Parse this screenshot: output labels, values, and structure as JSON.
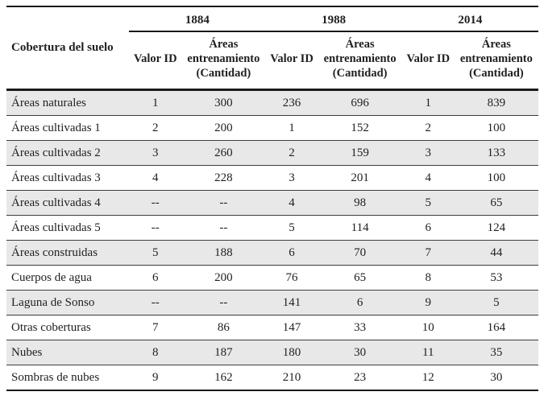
{
  "table": {
    "land_cover_header": "Cobertura del suelo",
    "sub_headers": {
      "valor_id": "Valor ID",
      "areas": "Áreas entrenamiento (Cantidad)"
    },
    "year_groups": [
      {
        "year": "1884"
      },
      {
        "year": "1988"
      },
      {
        "year": "2014"
      }
    ],
    "rows": [
      {
        "label": "Áreas naturales",
        "values": [
          "1",
          "300",
          "236",
          "696",
          "1",
          "839"
        ],
        "shaded": true
      },
      {
        "label": "Áreas cultivadas 1",
        "values": [
          "2",
          "200",
          "1",
          "152",
          "2",
          "100"
        ],
        "shaded": false
      },
      {
        "label": "Áreas cultivadas 2",
        "values": [
          "3",
          "260",
          "2",
          "159",
          "3",
          "133"
        ],
        "shaded": true
      },
      {
        "label": "Áreas cultivadas 3",
        "values": [
          "4",
          "228",
          "3",
          "201",
          "4",
          "100"
        ],
        "shaded": false
      },
      {
        "label": "Áreas cultivadas 4",
        "values": [
          "--",
          "--",
          "4",
          "98",
          "5",
          "65"
        ],
        "shaded": true
      },
      {
        "label": "Áreas cultivadas 5",
        "values": [
          "--",
          "--",
          "5",
          "114",
          "6",
          "124"
        ],
        "shaded": false
      },
      {
        "label": "Áreas construidas",
        "values": [
          "5",
          "188",
          "6",
          "70",
          "7",
          "44"
        ],
        "shaded": true
      },
      {
        "label": "Cuerpos de agua",
        "values": [
          "6",
          "200",
          "76",
          "65",
          "8",
          "53"
        ],
        "shaded": false
      },
      {
        "label": "Laguna de Sonso",
        "values": [
          "--",
          "--",
          "141",
          "6",
          "9",
          "5"
        ],
        "shaded": true
      },
      {
        "label": "Otras coberturas",
        "values": [
          "7",
          "86",
          "147",
          "33",
          "10",
          "164"
        ],
        "shaded": false
      },
      {
        "label": "Nubes",
        "values": [
          "8",
          "187",
          "180",
          "30",
          "11",
          "35"
        ],
        "shaded": true
      },
      {
        "label": "Sombras de nubes",
        "values": [
          "9",
          "162",
          "210",
          "23",
          "12",
          "30"
        ],
        "shaded": false
      }
    ],
    "colors": {
      "shaded_row": "#e8e8e8",
      "text": "#1f1f1f",
      "border_dark": "#1a1a1a",
      "border_thin": "#3c3c3c"
    }
  }
}
